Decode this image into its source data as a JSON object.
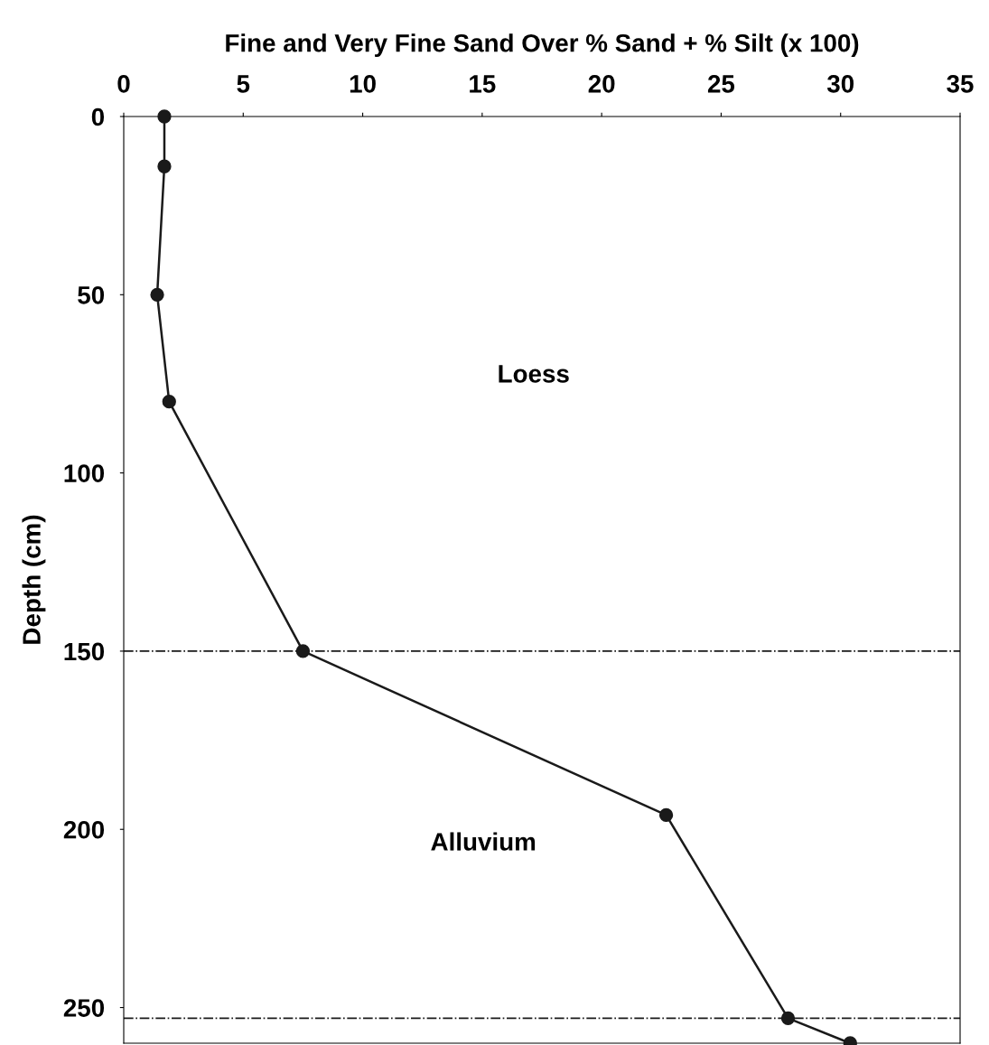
{
  "chart_data": {
    "type": "line",
    "xlabel": "Fine and Very Fine Sand Over % Sand + % Silt (x 100)",
    "ylabel": "Depth (cm)",
    "x": [
      1.7,
      1.7,
      1.4,
      1.9,
      7.5,
      22.7,
      27.8,
      30.4
    ],
    "series": [
      {
        "color": "#1a1a1a",
        "values": [
          0,
          14,
          50,
          80,
          150,
          196,
          253,
          260
        ]
      }
    ],
    "xlim": [
      0,
      35
    ],
    "xticks": [
      0,
      5,
      10,
      15,
      20,
      25,
      30,
      35
    ],
    "ylim": [
      260,
      0
    ],
    "yticks": [
      0,
      50,
      100,
      150,
      200,
      250
    ],
    "marker": "circle",
    "line_style": "solid",
    "grid": false,
    "legend": false,
    "ref_lines": [
      {
        "axis": "y",
        "value": 150,
        "line_style": "dashdot",
        "color": "#1a1a1a"
      },
      {
        "axis": "y",
        "value": 253,
        "line_style": "dashdot",
        "color": "#1a1a1a"
      }
    ],
    "annotations": [
      "Loess",
      "Alluvium"
    ]
  }
}
